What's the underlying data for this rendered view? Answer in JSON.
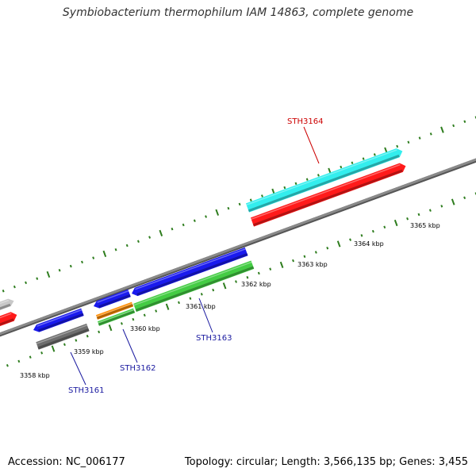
{
  "title": "Symbiobacterium thermophilum IAM 14863, complete genome",
  "footer": {
    "accession": "Accession: NC_006177",
    "summary": "Topology: circular; Length: 3,566,135 bp; Genes: 3,455"
  },
  "colors": {
    "backbone": "#8a8a8a",
    "tick": "#2e7d1e",
    "label_highlight": "#cc0000",
    "label_normal": "#1a1aa0"
  },
  "ruler_labels": [
    "3358 kbp",
    "3359 kbp",
    "3360 kbp",
    "3361 kbp",
    "3362 kbp",
    "3363 kbp",
    "3364 kbp",
    "3365 kbp"
  ],
  "features": [
    {
      "id": "f1",
      "color": "#c8c8c8"
    },
    {
      "id": "f2",
      "color": "#ff1a1a"
    },
    {
      "id": "f3",
      "color": "#1a1aee"
    },
    {
      "id": "f4",
      "color": "#6e6e6e"
    },
    {
      "id": "f5",
      "color": "#1a1aee"
    },
    {
      "id": "f6",
      "color": "#ff8c00"
    },
    {
      "id": "f7",
      "color": "#44cc44"
    },
    {
      "id": "f8",
      "color": "#1a1aee"
    },
    {
      "id": "f9",
      "color": "#44cc44"
    },
    {
      "id": "f10",
      "color": "#33eeee"
    },
    {
      "id": "f11",
      "color": "#ff1a1a"
    }
  ],
  "gene_labels": [
    {
      "name": "STH3161",
      "color": "#1a1aa0"
    },
    {
      "name": "STH3162",
      "color": "#1a1aa0"
    },
    {
      "name": "STH3163",
      "color": "#1a1aa0"
    },
    {
      "name": "STH3164",
      "color": "#cc0000"
    }
  ]
}
